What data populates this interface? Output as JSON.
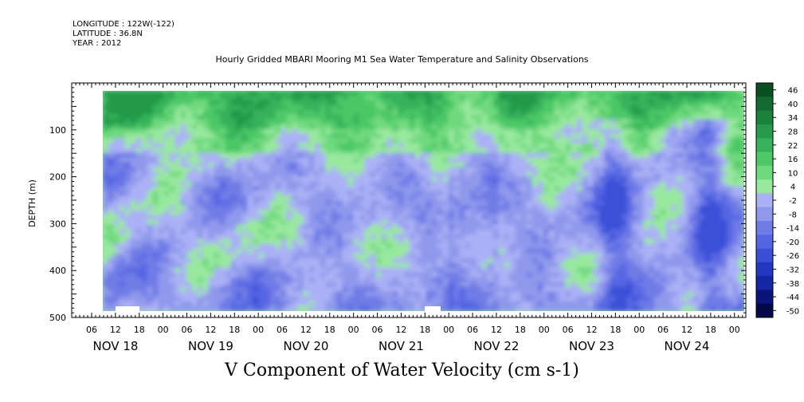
{
  "header": {
    "longitude": "LONGITUDE : 122W(-122)",
    "latitude": "LATITUDE : 36.8N",
    "year": "YEAR : 2012"
  },
  "title": "Hourly Gridded MBARI Mooring M1 Sea Water Temperature and Salinity Observations",
  "footer_title": "V Component of Water Velocity (cm s-1)",
  "chart_data": {
    "type": "heatmap",
    "title": "Hourly Gridded MBARI Mooring M1 Sea Water Temperature and Salinity Observations",
    "xlabel": "",
    "ylabel": "DEPTH (m)",
    "ylim": [
      500,
      0
    ],
    "y_inverted": true,
    "y_ticks": [
      100,
      200,
      300,
      400,
      500
    ],
    "x_hour_ticks": [
      "06",
      "12",
      "18",
      "00",
      "06",
      "12",
      "18",
      "00",
      "06",
      "12",
      "18",
      "00",
      "06",
      "12",
      "18",
      "00",
      "06",
      "12",
      "18",
      "00",
      "06",
      "12",
      "18",
      "00",
      "06",
      "12",
      "18",
      "00"
    ],
    "x_day_labels": [
      "NOV 18",
      "NOV 19",
      "NOV 20",
      "NOV 21",
      "NOV 22",
      "NOV 23",
      "NOV 24"
    ],
    "colorbar": {
      "labels": [
        "46",
        "40",
        "34",
        "28",
        "22",
        "16",
        "10",
        "4",
        "-2",
        "-8",
        "-14",
        "-20",
        "-26",
        "-32",
        "-38",
        "-44",
        "-50"
      ],
      "range": [
        -50,
        46
      ]
    },
    "colors": {
      "strong_positive": "#1b6b34",
      "positive": "#35b25a",
      "weak_positive": "#98e89e",
      "weak_negative": "#aab1f5",
      "negative": "#6f7ce6",
      "strong_negative": "#101a8a"
    },
    "features": {
      "surface_layer": "strong northward flow (20 to 40) in top ~60 m throughout",
      "deep_southward_bands": [
        "NOV 22 18:00",
        "NOV 23 18:00"
      ],
      "typical_values_range": [
        -25,
        30
      ]
    }
  }
}
